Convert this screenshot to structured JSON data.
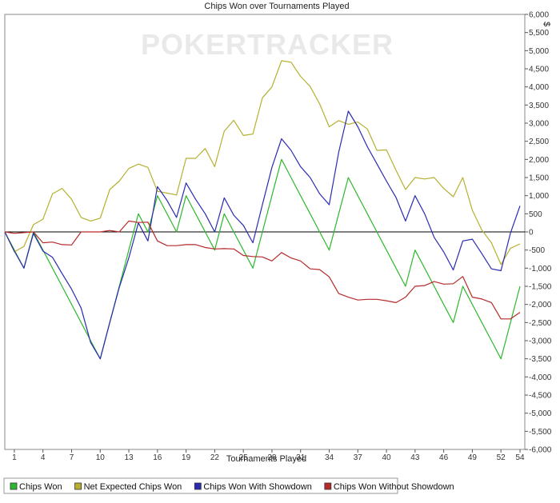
{
  "chart_data": {
    "type": "line",
    "title": "Chips Won over Tournaments Played",
    "xlabel": "Tournaments Played",
    "ylabel": "$",
    "watermark": "POKERTRACKER",
    "xlim": [
      0,
      54.5
    ],
    "ylim": [
      -6000,
      6000
    ],
    "grid": false,
    "legend_position": "bottom",
    "x_ticks": [
      1,
      4,
      7,
      10,
      13,
      16,
      19,
      22,
      25,
      28,
      31,
      34,
      37,
      40,
      43,
      46,
      49,
      52,
      54
    ],
    "y_ticks": [
      {
        "value": 6000,
        "label": "6,000"
      },
      {
        "value": 5500,
        "label": "5,500"
      },
      {
        "value": 5000,
        "label": "5,000"
      },
      {
        "value": 4500,
        "label": "4,500"
      },
      {
        "value": 4000,
        "label": "4,000"
      },
      {
        "value": 3500,
        "label": "3,500"
      },
      {
        "value": 3000,
        "label": "3,000"
      },
      {
        "value": 2500,
        "label": "2,500"
      },
      {
        "value": 2000,
        "label": "2,000"
      },
      {
        "value": 1500,
        "label": "1,500"
      },
      {
        "value": 1000,
        "label": "1,000"
      },
      {
        "value": 500,
        "label": "500"
      },
      {
        "value": 0,
        "label": "0"
      },
      {
        "value": -500,
        "label": "-500"
      },
      {
        "value": -1000,
        "label": "-1,000"
      },
      {
        "value": -1500,
        "label": "-1,500"
      },
      {
        "value": -2000,
        "label": "-2,000"
      },
      {
        "value": -2500,
        "label": "-2,500"
      },
      {
        "value": -3000,
        "label": "-3,000"
      },
      {
        "value": -3500,
        "label": "-3,500"
      },
      {
        "value": -4000,
        "label": "-4,000"
      },
      {
        "value": -4500,
        "label": "-4,500"
      },
      {
        "value": -5000,
        "label": "-5,000"
      },
      {
        "value": -5500,
        "label": "-5,500"
      },
      {
        "value": -6000,
        "label": "-6,000"
      }
    ],
    "x": [
      0,
      1,
      2,
      3,
      4,
      5,
      6,
      7,
      8,
      9,
      10,
      11,
      12,
      13,
      14,
      15,
      16,
      17,
      18,
      19,
      20,
      21,
      22,
      23,
      24,
      25,
      26,
      27,
      28,
      29,
      30,
      31,
      32,
      33,
      34,
      35,
      36,
      37,
      38,
      39,
      40,
      41,
      42,
      43,
      44,
      45,
      46,
      47,
      48,
      49,
      50,
      51,
      52,
      53,
      54
    ],
    "series": [
      {
        "name": "Chips Won",
        "color": "#2db82d",
        "values": [
          0,
          -500,
          -1000,
          0,
          -500,
          -1000,
          -1500,
          -2000,
          -2500,
          -3000,
          -3500,
          -2500,
          -1500,
          -500,
          500,
          0,
          1000,
          500,
          0,
          1000,
          500,
          0,
          -500,
          500,
          0,
          -500,
          -1000,
          0,
          1000,
          2000,
          1500,
          1000,
          500,
          0,
          -500,
          500,
          1500,
          1000,
          500,
          0,
          -500,
          -1000,
          -1500,
          -500,
          -1000,
          -1500,
          -2000,
          -2500,
          -1500,
          -2000,
          -2500,
          -3000,
          -3500,
          -2500,
          -1500
        ]
      },
      {
        "name": "Net Expected Chips Won",
        "color": "#b5b030",
        "values": [
          0,
          -550,
          -400,
          200,
          350,
          1050,
          1200,
          900,
          400,
          300,
          380,
          1170,
          1400,
          1750,
          1870,
          1780,
          1120,
          1070,
          1020,
          2030,
          2030,
          2300,
          1800,
          2780,
          3080,
          2660,
          2700,
          3700,
          4000,
          4720,
          4680,
          4290,
          4010,
          3530,
          2900,
          3070,
          2970,
          3030,
          2840,
          2250,
          2260,
          1700,
          1170,
          1500,
          1460,
          1500,
          1200,
          970,
          1500,
          600,
          50,
          -300,
          -900,
          -450,
          -330
        ]
      },
      {
        "name": "Chips Won With Showdown",
        "color": "#2b2bb0",
        "values": [
          0,
          -530,
          -1000,
          -40,
          -530,
          -700,
          -1150,
          -1580,
          -2100,
          -3050,
          -3500,
          -2500,
          -1530,
          -720,
          250,
          -250,
          1250,
          870,
          400,
          1350,
          900,
          500,
          0,
          940,
          460,
          180,
          -300,
          750,
          1780,
          2570,
          2250,
          1800,
          1500,
          1050,
          750,
          2200,
          3330,
          2900,
          2350,
          1880,
          1400,
          950,
          300,
          1000,
          500,
          -150,
          -550,
          -1050,
          -250,
          -200,
          -600,
          -1020,
          -1070,
          -30,
          720
        ]
      },
      {
        "name": "Chips Won Without Showdown",
        "color": "#b52a2a",
        "values": [
          0,
          -40,
          -20,
          0,
          -300,
          -280,
          -350,
          -360,
          0,
          0,
          0,
          40,
          0,
          300,
          260,
          270,
          -250,
          -380,
          -380,
          -350,
          -350,
          -430,
          -470,
          -460,
          -470,
          -650,
          -680,
          -690,
          -800,
          -570,
          -720,
          -800,
          -1020,
          -1040,
          -1240,
          -1700,
          -1800,
          -1880,
          -1860,
          -1860,
          -1900,
          -1950,
          -1800,
          -1500,
          -1480,
          -1370,
          -1440,
          -1430,
          -1230,
          -1800,
          -1850,
          -1950,
          -2400,
          -2400,
          -2220
        ]
      }
    ]
  }
}
